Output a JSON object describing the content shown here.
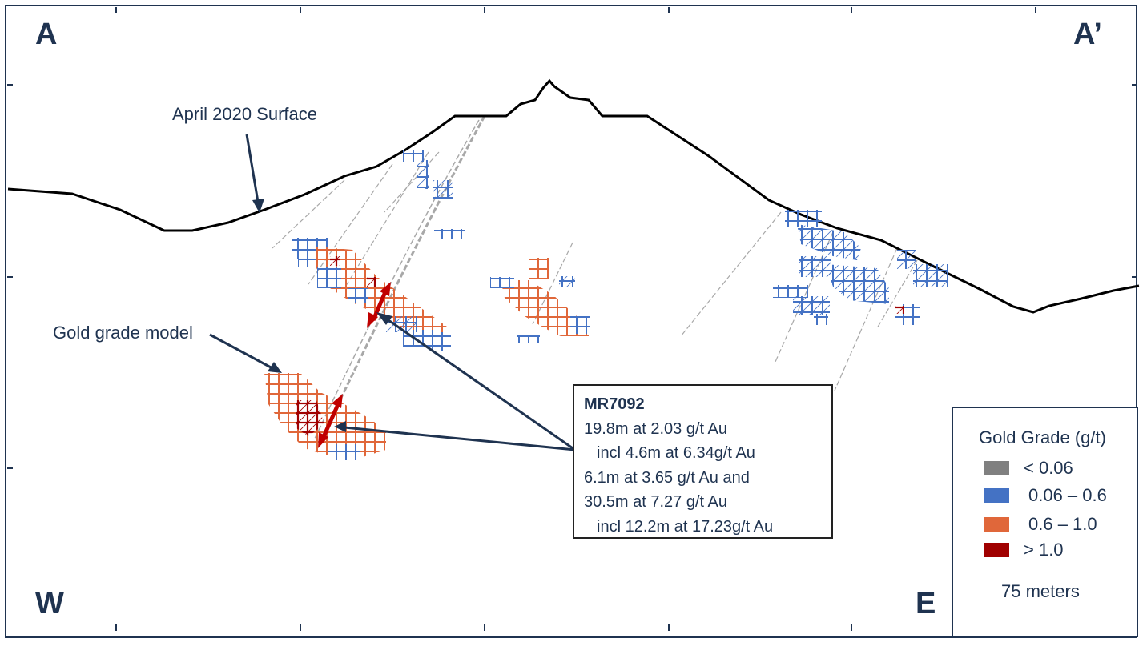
{
  "corners": {
    "top_left": "A",
    "top_right": "A’",
    "bottom_left": "W",
    "bottom_right": "E"
  },
  "annotations": {
    "surface": "April 2020 Surface",
    "grade_model": "Gold grade model"
  },
  "callout": {
    "title": "MR7092",
    "lines": [
      "19.8m at 2.03 g/t Au",
      "incl 4.6m at 6.34g/t Au",
      "6.1m at 3.65 g/t Au and",
      "30.5m at 7.27 g/t Au",
      "incl 12.2m at 17.23g/t Au"
    ]
  },
  "legend": {
    "title": "Gold Grade (g/t)",
    "items": [
      {
        "label": "< 0.06",
        "color": "#808080"
      },
      {
        "label": "0.06 – 0.6",
        "color": "#4472c4"
      },
      {
        "label": "0.6 – 1.0",
        "color": "#e0673a"
      },
      {
        "label": "> 1.0",
        "color": "#a00000"
      }
    ],
    "scale_label": "75 meters"
  },
  "colors": {
    "frame": "#1f3350",
    "surface_line": "#000000",
    "drill_trace": "#a0a0a0",
    "intercept_arrow": "#c00000",
    "pointer": "#1f3350"
  }
}
